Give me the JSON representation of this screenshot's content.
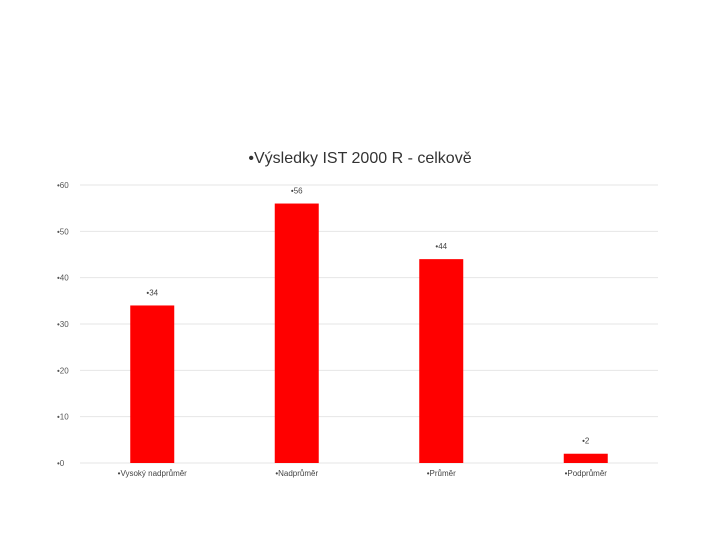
{
  "chart_data": {
    "type": "bar",
    "title": "•Výsledky IST 2000 R - celkově",
    "categories": [
      "•Vysoký nadprůměr",
      "•Nadprůměr",
      "•Průměr",
      "•Podprůměr"
    ],
    "values": [
      34,
      56,
      44,
      2
    ],
    "data_labels": [
      "•34",
      "•56",
      "•44",
      "•2"
    ],
    "yticks": [
      0,
      10,
      20,
      30,
      40,
      50,
      60
    ],
    "ytick_labels": [
      "•0",
      "•10",
      "•20",
      "•30",
      "•40",
      "•50",
      "•60"
    ],
    "ylim": [
      0,
      60
    ],
    "xlabel": "",
    "ylabel": "",
    "grid": true,
    "legend": "none",
    "bar_color": "#ff0000",
    "grid_color": "#e6e6e6"
  }
}
